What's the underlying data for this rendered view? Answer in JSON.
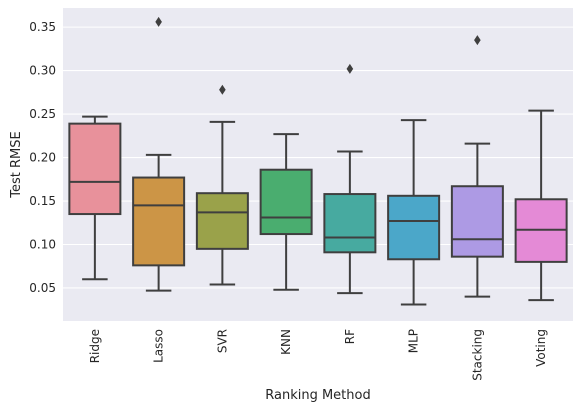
{
  "chart_data": {
    "type": "box",
    "xlabel": "Ranking Method",
    "ylabel": "Test RMSE",
    "ylim": [
      0.012,
      0.372
    ],
    "yticks": [
      0.05,
      0.1,
      0.15,
      0.2,
      0.25,
      0.3,
      0.35
    ],
    "ytick_labels": [
      "0.05",
      "0.10",
      "0.15",
      "0.20",
      "0.25",
      "0.30",
      "0.35"
    ],
    "grid": true,
    "background": "#eaeaf2",
    "box_edge_color": "#3f3f3f",
    "categories": [
      "Ridge",
      "Lasso",
      "SVR",
      "KNN",
      "RF",
      "MLP",
      "Stacking",
      "Voting"
    ],
    "boxes": [
      {
        "category": "Ridge",
        "color": "#e8919b",
        "whisker_low": 0.06,
        "q1": 0.135,
        "median": 0.172,
        "q3": 0.239,
        "whisker_high": 0.247,
        "outliers": []
      },
      {
        "category": "Lasso",
        "color": "#cc9546",
        "whisker_low": 0.047,
        "q1": 0.076,
        "median": 0.145,
        "q3": 0.177,
        "whisker_high": 0.203,
        "outliers": [
          0.356
        ]
      },
      {
        "category": "SVR",
        "color": "#9aa24a",
        "whisker_low": 0.054,
        "q1": 0.095,
        "median": 0.137,
        "q3": 0.159,
        "whisker_high": 0.241,
        "outliers": [
          0.278
        ]
      },
      {
        "category": "KNN",
        "color": "#4aad6f",
        "whisker_low": 0.048,
        "q1": 0.112,
        "median": 0.131,
        "q3": 0.186,
        "whisker_high": 0.227,
        "outliers": []
      },
      {
        "category": "RF",
        "color": "#47aaa0",
        "whisker_low": 0.044,
        "q1": 0.091,
        "median": 0.108,
        "q3": 0.158,
        "whisker_high": 0.207,
        "outliers": [
          0.302
        ]
      },
      {
        "category": "MLP",
        "color": "#4ba7c9",
        "whisker_low": 0.031,
        "q1": 0.083,
        "median": 0.127,
        "q3": 0.156,
        "whisker_high": 0.243,
        "outliers": []
      },
      {
        "category": "Stacking",
        "color": "#ad9ae4",
        "whisker_low": 0.04,
        "q1": 0.086,
        "median": 0.106,
        "q3": 0.167,
        "whisker_high": 0.216,
        "outliers": [
          0.335
        ]
      },
      {
        "category": "Voting",
        "color": "#e48ad6",
        "whisker_low": 0.036,
        "q1": 0.08,
        "median": 0.117,
        "q3": 0.152,
        "whisker_high": 0.254,
        "outliers": []
      }
    ]
  }
}
